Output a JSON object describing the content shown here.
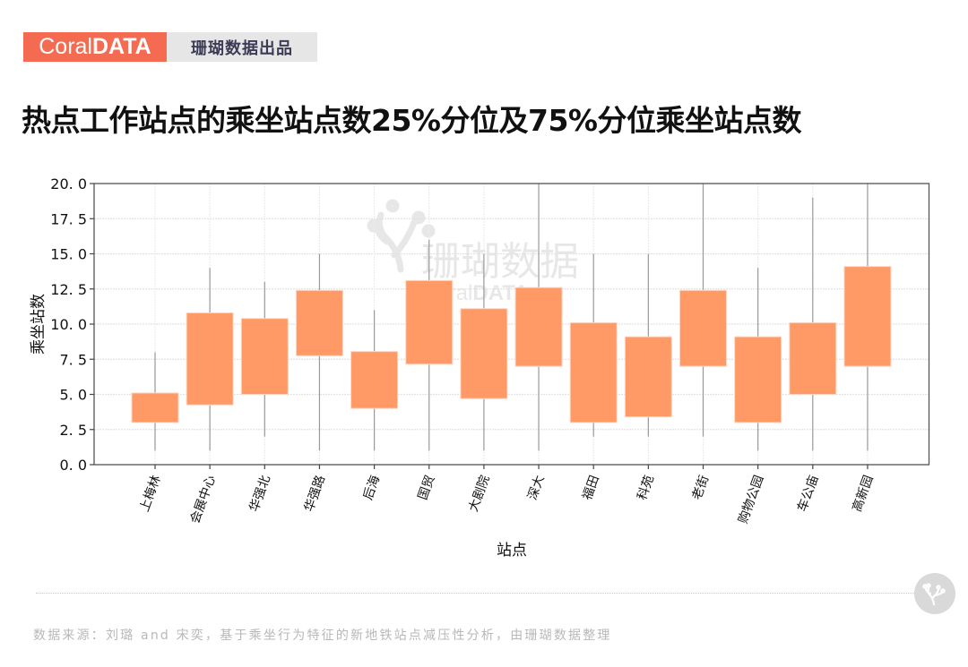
{
  "brand": {
    "name_light": "Coral",
    "name_bold": "DATA",
    "tagline": "珊瑚数据出品",
    "accent_color": "#f56b52"
  },
  "title": "热点工作站点的乘坐站点数25%分位及75%分位乘坐站点数",
  "watermark": {
    "cn": "珊瑚数据",
    "en_light": "Coral",
    "en_bold": "DATA"
  },
  "footer": {
    "source": "数据来源：刘璐 and 宋奕，基于乘坐行为特征的新地铁站点减压性分析，由珊瑚数据整理"
  },
  "chart_data": {
    "type": "box",
    "title": "热点工作站点的乘坐站点数25%分位及75%分位乘坐站点数",
    "xlabel": "站点",
    "ylabel": "乘坐站数",
    "ylim": [
      0,
      20
    ],
    "yticks": [
      "0.0",
      "2.5",
      "5.0",
      "7.5",
      "10.0",
      "12.5",
      "15.0",
      "17.5",
      "20.0"
    ],
    "grid": true,
    "box_color": "#ff9966",
    "categories": [
      "上梅林",
      "会展中心",
      "华强北",
      "华强路",
      "后海",
      "国贸",
      "大剧院",
      "深大",
      "福田",
      "科苑",
      "老街",
      "购物公园",
      "车公庙",
      "高新园"
    ],
    "series": [
      {
        "name": "whisker_min",
        "values": [
          1,
          1,
          2,
          1,
          1,
          1,
          1,
          1,
          2,
          2,
          2,
          1,
          1,
          1
        ]
      },
      {
        "name": "q1_25pct",
        "values": [
          3,
          4.25,
          5,
          7.75,
          4,
          7.15,
          4.7,
          7,
          3,
          3.4,
          7,
          3,
          5,
          7
        ]
      },
      {
        "name": "q3_75pct",
        "values": [
          5.1,
          10.8,
          10.4,
          12.4,
          8.05,
          13.1,
          11.1,
          12.6,
          10.1,
          9.1,
          12.4,
          9.1,
          10.1,
          14.1
        ]
      },
      {
        "name": "whisker_max",
        "values": [
          8,
          14,
          13,
          15,
          11,
          16,
          15,
          20,
          15,
          15,
          20,
          14,
          19,
          20
        ]
      }
    ]
  }
}
